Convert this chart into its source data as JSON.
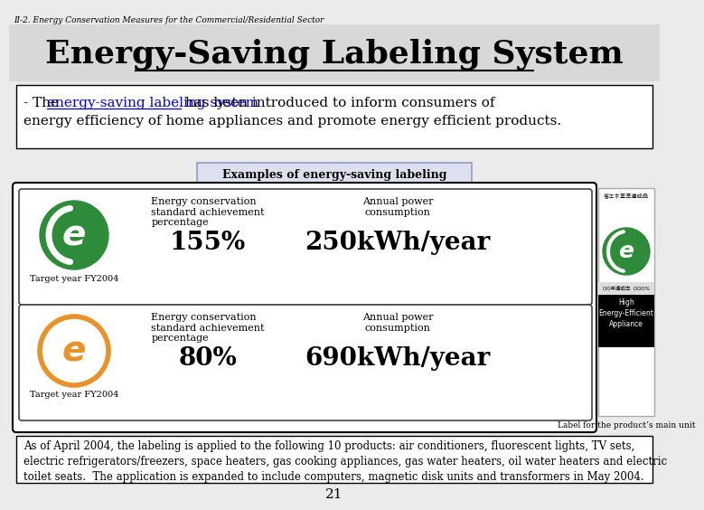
{
  "title": "Energy-Saving Labeling System",
  "subtitle": "II-2. Energy Conservation Measures for the Commercial/Residential Sector",
  "intro_text_1": "- The ",
  "intro_link": "energy-saving labeling system",
  "intro_text_2": " has been introduced to inform consumers of",
  "intro_text_3": "energy efficiency of home appliances and promote energy efficient products.",
  "examples_label": "Examples of energy-saving labeling",
  "label1_target": "Target year FY2004",
  "label1_field1": "Energy conservation\nstandard achievement\npercentage",
  "label1_val1": "155%",
  "label1_field2": "Annual power\nconsumption",
  "label1_val2": "250kWh/year",
  "label2_target": "Target year FY2004",
  "label2_field1": "Energy conservation\nstandard achievement\npercentage",
  "label2_val1": "80%",
  "label2_field2": "Annual power\nconsumption",
  "label2_val2": "690kWh/year",
  "product_label": "Label for the product’s main unit",
  "bottom_text": "As of April 2004, the labeling is applied to the following 10 products: air conditioners, fluorescent lights, TV sets,\nelectric refrigerators/freezers, space heaters, gas cooking appliances, gas water heaters, oil water heaters and electric\ntoilet seats.  The application is expanded to include computers, magnetic disk units and transformers in May 2004.",
  "page_number": "21",
  "bg_color": "#ebebeb",
  "white": "#ffffff",
  "green_circle_color": "#2e8b3a",
  "orange_circle_color": "#e8922a",
  "examples_bg": "#dde0ef",
  "examples_border": "#9999cc",
  "header_bg": "#d8d8d8"
}
